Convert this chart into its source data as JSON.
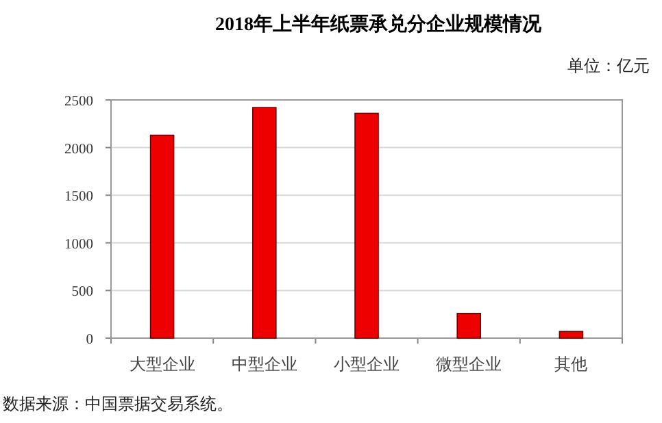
{
  "chart_data": {
    "type": "bar",
    "title": "2018年上半年纸票承兑分企业规模情况",
    "subtitle": "单位：亿元",
    "categories": [
      "大型企业",
      "中型企业",
      "小型企业",
      "微型企业",
      "其他"
    ],
    "values": [
      2130,
      2420,
      2360,
      260,
      70
    ],
    "color": "#ee0000",
    "ylim": [
      0,
      2500
    ],
    "yticks": [
      0,
      500,
      1000,
      1500,
      2000,
      2500
    ],
    "grid": "y",
    "annotations": [
      "数据来源：中国票据交易系统。"
    ]
  }
}
